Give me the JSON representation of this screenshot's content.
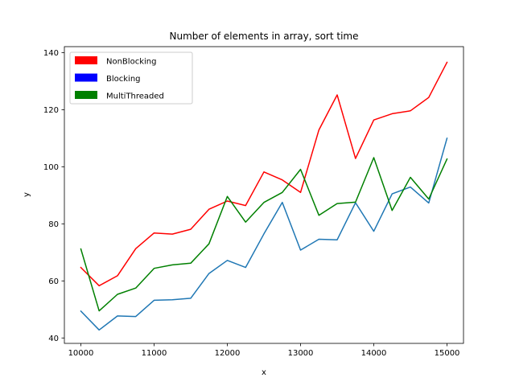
{
  "chart_data": {
    "type": "line",
    "title": "Number of elements in array, sort time",
    "xlabel": "x",
    "ylabel": "y",
    "xlim": [
      9775,
      15225
    ],
    "ylim": [
      38.1,
      142.1
    ],
    "xticks": [
      10000,
      11000,
      12000,
      13000,
      14000,
      15000
    ],
    "xtick_labels": [
      "10000",
      "11000",
      "12000",
      "13000",
      "14000",
      "15000"
    ],
    "yticks": [
      40,
      60,
      80,
      100,
      120,
      140
    ],
    "ytick_labels": [
      "40",
      "60",
      "80",
      "100",
      "120",
      "140"
    ],
    "grid": false,
    "legend_position": "upper-left",
    "x": [
      10000,
      10250,
      10500,
      10750,
      11000,
      11250,
      11500,
      11750,
      12000,
      12250,
      12500,
      12750,
      13000,
      13250,
      13500,
      13750,
      14000,
      14250,
      14500,
      14750,
      15000
    ],
    "series": [
      {
        "name": "NonBlocking",
        "color": "#ff0000",
        "values": [
          64.7,
          58.3,
          61.8,
          71.3,
          76.8,
          76.4,
          78.1,
          85.1,
          88.0,
          86.4,
          98.2,
          95.4,
          91.0,
          112.9,
          125.2,
          102.9,
          116.4,
          118.6,
          119.6,
          124.3,
          136.6
        ]
      },
      {
        "name": "Blocking",
        "color": "#1f77b4",
        "legend_color": "#0000ff",
        "values": [
          49.4,
          42.8,
          47.7,
          47.5,
          53.2,
          53.4,
          53.9,
          62.6,
          67.2,
          64.7,
          76.5,
          87.5,
          70.8,
          74.6,
          74.4,
          87.4,
          77.4,
          90.5,
          92.9,
          87.3,
          110.0
        ]
      },
      {
        "name": "MultiThreaded",
        "color": "#008000",
        "values": [
          71.2,
          49.5,
          55.3,
          57.5,
          64.4,
          65.6,
          66.2,
          73.0,
          89.6,
          80.6,
          87.5,
          91.0,
          99.1,
          83.0,
          87.1,
          87.6,
          103.2,
          84.7,
          96.3,
          88.7,
          102.7
        ]
      }
    ]
  }
}
